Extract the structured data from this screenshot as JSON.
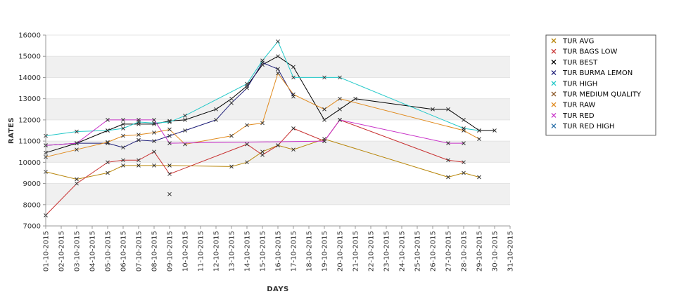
{
  "chart_data": {
    "type": "line",
    "xlabel": "DAYS",
    "ylabel": "RATES",
    "ylim": [
      7000,
      16000
    ],
    "yticks": [
      7000,
      8000,
      9000,
      10000,
      11000,
      12000,
      13000,
      14000,
      15000,
      16000
    ],
    "ytick_labels": [
      "7000",
      "8000",
      "9000",
      "10000",
      "11000",
      "12000",
      "13000",
      "14000",
      "15000",
      "16000"
    ],
    "xlim": [
      "01-10-2015",
      "31-10-2015"
    ],
    "xtick_labels": [
      "01-10-2015",
      "02-10-2015",
      "03-10-2015",
      "04-10-2015",
      "05-10-2015",
      "06-10-2015",
      "07-10-2015",
      "08-10-2015",
      "09-10-2015",
      "10-10-2015",
      "11-10-2015",
      "12-10-2015",
      "13-10-2015",
      "14-10-2015",
      "15-10-2015",
      "16-10-2015",
      "17-10-2015",
      "18-10-2015",
      "19-10-2015",
      "20-10-2015",
      "21-10-2015",
      "22-10-2015",
      "23-10-2015",
      "24-10-2015",
      "25-10-2015",
      "26-10-2015",
      "27-10-2015",
      "28-10-2015",
      "29-10-2015",
      "30-10-2015",
      "31-10-2015"
    ],
    "grid": "horizontal bands",
    "legend_position": "right",
    "marker": "x",
    "series": [
      {
        "name": "TUR AVG",
        "color": "#b8860b",
        "points": [
          [
            "01-10-2015",
            9550
          ],
          [
            "03-10-2015",
            9200
          ],
          [
            "05-10-2015",
            9500
          ],
          [
            "06-10-2015",
            9850
          ],
          [
            "07-10-2015",
            9850
          ],
          [
            "08-10-2015",
            9850
          ],
          [
            "09-10-2015",
            9850
          ],
          [
            "13-10-2015",
            9800
          ],
          [
            "14-10-2015",
            10000
          ],
          [
            "15-10-2015",
            10500
          ],
          [
            "16-10-2015",
            10800
          ],
          [
            "17-10-2015",
            10600
          ],
          [
            "19-10-2015",
            11100
          ],
          [
            "27-10-2015",
            9300
          ],
          [
            "28-10-2015",
            9500
          ],
          [
            "29-10-2015",
            9300
          ]
        ]
      },
      {
        "name": "TUR BAGS LOW",
        "color": "#c83232",
        "points": [
          [
            "01-10-2015",
            7500
          ],
          [
            "03-10-2015",
            9000
          ],
          [
            "05-10-2015",
            10000
          ],
          [
            "06-10-2015",
            10100
          ],
          [
            "07-10-2015",
            10100
          ],
          [
            "08-10-2015",
            10500
          ],
          [
            "09-10-2015",
            9450
          ],
          [
            "14-10-2015",
            10850
          ],
          [
            "15-10-2015",
            10350
          ],
          [
            "16-10-2015",
            10800
          ],
          [
            "17-10-2015",
            11600
          ],
          [
            "19-10-2015",
            11000
          ],
          [
            "20-10-2015",
            12000
          ],
          [
            "27-10-2015",
            10100
          ],
          [
            "28-10-2015",
            10000
          ]
        ]
      },
      {
        "name": "TUR BEST",
        "color": "#000000",
        "points": [
          [
            "01-10-2015",
            10450
          ],
          [
            "03-10-2015",
            10900
          ],
          [
            "05-10-2015",
            11500
          ],
          [
            "06-10-2015",
            11800
          ],
          [
            "07-10-2015",
            11800
          ],
          [
            "08-10-2015",
            11800
          ],
          [
            "09-10-2015",
            11950
          ],
          [
            "10-10-2015",
            12000
          ],
          [
            "12-10-2015",
            12500
          ],
          [
            "13-10-2015",
            13000
          ],
          [
            "14-10-2015",
            13600
          ],
          [
            "15-10-2015",
            14600
          ],
          [
            "16-10-2015",
            15000
          ],
          [
            "17-10-2015",
            14500
          ],
          [
            "19-10-2015",
            12000
          ],
          [
            "20-10-2015",
            12500
          ],
          [
            "21-10-2015",
            13000
          ],
          [
            "26-10-2015",
            12500
          ],
          [
            "27-10-2015",
            12500
          ],
          [
            "28-10-2015",
            12000
          ],
          [
            "29-10-2015",
            11500
          ],
          [
            "30-10-2015",
            11500
          ]
        ]
      },
      {
        "name": "TUR BURMA LEMON",
        "color": "#1e1e78",
        "points": [
          [
            "01-10-2015",
            10800
          ],
          [
            "03-10-2015",
            10900
          ],
          [
            "05-10-2015",
            10900
          ],
          [
            "06-10-2015",
            10700
          ],
          [
            "07-10-2015",
            11050
          ],
          [
            "08-10-2015",
            11000
          ],
          [
            "09-10-2015",
            11250
          ],
          [
            "10-10-2015",
            11500
          ],
          [
            "12-10-2015",
            12000
          ],
          [
            "13-10-2015",
            12800
          ],
          [
            "14-10-2015",
            13500
          ],
          [
            "15-10-2015",
            14700
          ],
          [
            "16-10-2015",
            14400
          ],
          [
            "17-10-2015",
            13100
          ]
        ]
      },
      {
        "name": "TUR HIGH",
        "color": "#22c8c8",
        "points": [
          [
            "01-10-2015",
            11250
          ],
          [
            "03-10-2015",
            11450
          ],
          [
            "05-10-2015",
            11500
          ],
          [
            "06-10-2015",
            11600
          ],
          [
            "07-10-2015",
            11900
          ],
          [
            "08-10-2015",
            11850
          ],
          [
            "09-10-2015",
            11900
          ],
          [
            "10-10-2015",
            12200
          ],
          [
            "14-10-2015",
            13700
          ],
          [
            "15-10-2015",
            14800
          ],
          [
            "16-10-2015",
            15700
          ],
          [
            "17-10-2015",
            14000
          ],
          [
            "19-10-2015",
            14000
          ],
          [
            "20-10-2015",
            14000
          ],
          [
            "28-10-2015",
            11600
          ],
          [
            "29-10-2015",
            11500
          ]
        ]
      },
      {
        "name": "TUR MEDIUM QUALITY",
        "color": "#8b5a2b",
        "points": [
          [
            "09-10-2015",
            8500
          ]
        ]
      },
      {
        "name": "TUR RAW",
        "color": "#e08a1e",
        "points": [
          [
            "01-10-2015",
            10250
          ],
          [
            "03-10-2015",
            10600
          ],
          [
            "05-10-2015",
            10950
          ],
          [
            "06-10-2015",
            11250
          ],
          [
            "07-10-2015",
            11300
          ],
          [
            "08-10-2015",
            11400
          ],
          [
            "09-10-2015",
            11550
          ],
          [
            "10-10-2015",
            10850
          ],
          [
            "13-10-2015",
            11250
          ],
          [
            "14-10-2015",
            11750
          ],
          [
            "15-10-2015",
            11850
          ],
          [
            "16-10-2015",
            14200
          ],
          [
            "17-10-2015",
            13200
          ],
          [
            "19-10-2015",
            12500
          ],
          [
            "20-10-2015",
            13000
          ],
          [
            "28-10-2015",
            11500
          ],
          [
            "29-10-2015",
            11100
          ]
        ]
      },
      {
        "name": "TUR RED",
        "color": "#c832c8",
        "points": [
          [
            "01-10-2015",
            10800
          ],
          [
            "03-10-2015",
            10900
          ],
          [
            "05-10-2015",
            12000
          ],
          [
            "06-10-2015",
            12000
          ],
          [
            "07-10-2015",
            12000
          ],
          [
            "08-10-2015",
            12000
          ],
          [
            "09-10-2015",
            10900
          ],
          [
            "19-10-2015",
            11000
          ],
          [
            "20-10-2015",
            12000
          ],
          [
            "27-10-2015",
            10900
          ],
          [
            "28-10-2015",
            10900
          ]
        ]
      },
      {
        "name": "TUR RED HIGH",
        "color": "#2a6fa8",
        "points": []
      }
    ]
  }
}
